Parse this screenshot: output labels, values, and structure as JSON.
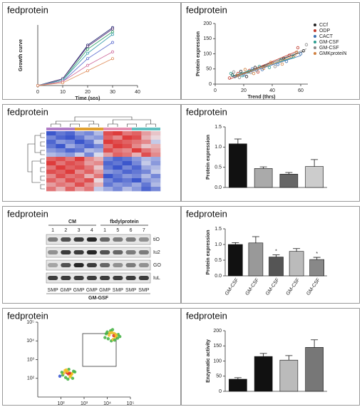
{
  "chart_data": [
    {
      "type": "line",
      "title": "fedprotein",
      "xlabel": "Time (sos)",
      "ylabel": "Growth curve",
      "x": [
        0,
        10,
        20,
        30
      ],
      "xlim": [
        0,
        40
      ],
      "xticks": [
        0,
        10,
        20,
        30,
        40
      ],
      "ylim": [
        0,
        45
      ],
      "series": [
        {
          "color": "#2b2f7a",
          "values": [
            0,
            5,
            30,
            43
          ]
        },
        {
          "color": "#5a3a7a",
          "values": [
            0,
            5,
            29,
            42
          ]
        },
        {
          "color": "#3aa870",
          "values": [
            0,
            4,
            27,
            40
          ]
        },
        {
          "color": "#40a0b0",
          "values": [
            0,
            4,
            24,
            38
          ]
        },
        {
          "color": "#6070d0",
          "values": [
            0,
            3,
            20,
            32
          ]
        },
        {
          "color": "#d070a0",
          "values": [
            0,
            3,
            15,
            25
          ]
        },
        {
          "color": "#e09060",
          "values": [
            0,
            2,
            11,
            20
          ]
        }
      ]
    },
    {
      "type": "scatter",
      "title": "fedprotein",
      "xlabel": "Trend (thrs)",
      "ylabel": "Protein expression",
      "xlim": [
        0,
        65
      ],
      "xticks": [
        0,
        20,
        40,
        60
      ],
      "ylim": [
        0,
        200
      ],
      "yticks": [
        0,
        50,
        100,
        150,
        200
      ],
      "series": [
        {
          "name": "CCf",
          "color": "#222222",
          "x": [
            12,
            18,
            22,
            28,
            35,
            48,
            62
          ],
          "values": [
            30,
            42,
            25,
            55,
            60,
            85,
            110
          ]
        },
        {
          "name": "ODP",
          "color": "#c0392b",
          "x": [
            10,
            16,
            24,
            30,
            40,
            52,
            58
          ],
          "values": [
            20,
            35,
            45,
            40,
            70,
            95,
            120
          ]
        },
        {
          "name": "CACT",
          "color": "#3a6fb0",
          "x": [
            14,
            20,
            26,
            33,
            44,
            50,
            60
          ],
          "values": [
            25,
            30,
            50,
            48,
            65,
            75,
            100
          ]
        },
        {
          "name": "GM-CSF",
          "color": "#2a9d8f",
          "x": [
            11,
            19,
            23,
            31,
            38,
            46,
            55
          ],
          "values": [
            35,
            28,
            40,
            58,
            55,
            80,
            90
          ]
        },
        {
          "name": "GM-CSF",
          "color": "#888888",
          "x": [
            13,
            17,
            25,
            29,
            36,
            42,
            64
          ],
          "values": [
            40,
            22,
            38,
            45,
            62,
            58,
            130
          ]
        },
        {
          "name": "GMKproteiN",
          "color": "#d08040",
          "x": [
            15,
            21,
            27,
            34,
            39,
            47,
            57
          ],
          "values": [
            28,
            48,
            35,
            52,
            72,
            66,
            105
          ]
        }
      ]
    },
    {
      "type": "heatmap",
      "title": "fedprotein",
      "zlim": [
        -1,
        1
      ],
      "values": [
        [
          -0.9,
          -0.7,
          -0.8,
          -0.5,
          -0.6,
          -0.3,
          0.8,
          0.9,
          0.6,
          0.7,
          0.4,
          0.2
        ],
        [
          -0.6,
          -0.8,
          -0.9,
          -0.7,
          -0.4,
          -0.5,
          0.7,
          0.5,
          0.9,
          0.8,
          0.3,
          0.1
        ],
        [
          -0.8,
          -0.5,
          -0.6,
          -0.9,
          -0.7,
          -0.2,
          0.9,
          0.8,
          0.7,
          0.6,
          0.5,
          -0.2
        ],
        [
          -0.7,
          -0.9,
          -0.4,
          -0.6,
          -0.8,
          -0.6,
          0.6,
          0.9,
          0.8,
          0.5,
          0.2,
          0.3
        ],
        [
          -0.5,
          -0.6,
          -0.8,
          -0.7,
          -0.3,
          -0.4,
          0.8,
          0.6,
          0.5,
          0.9,
          0.6,
          0.4
        ],
        [
          -0.3,
          -0.4,
          -0.5,
          -0.2,
          -0.6,
          -0.1,
          0.4,
          0.7,
          0.6,
          0.3,
          0.8,
          0.5
        ],
        [
          0.7,
          0.8,
          0.6,
          0.9,
          0.5,
          0.3,
          -0.6,
          -0.8,
          -0.7,
          -0.5,
          -0.3,
          -0.4
        ],
        [
          0.9,
          0.6,
          0.8,
          0.7,
          0.4,
          0.5,
          -0.8,
          -0.7,
          -0.9,
          -0.6,
          -0.2,
          -0.5
        ],
        [
          0.6,
          0.9,
          0.7,
          0.8,
          0.6,
          0.2,
          -0.7,
          -0.9,
          -0.6,
          -0.8,
          -0.4,
          -0.3
        ],
        [
          0.8,
          0.7,
          0.9,
          0.5,
          0.7,
          0.4,
          -0.5,
          -0.6,
          -0.8,
          -0.7,
          -0.6,
          -0.2
        ],
        [
          0.5,
          0.8,
          0.6,
          0.7,
          0.3,
          0.6,
          -0.9,
          -0.7,
          -0.5,
          -0.6,
          -0.3,
          -0.6
        ],
        [
          0.7,
          0.5,
          0.8,
          0.6,
          0.8,
          0.1,
          -0.6,
          -0.8,
          -0.7,
          -0.9,
          -0.5,
          -0.4
        ],
        [
          0.4,
          0.6,
          0.5,
          0.8,
          0.5,
          0.3,
          -0.7,
          -0.5,
          -0.6,
          -0.4,
          -0.7,
          -0.3
        ],
        [
          0.6,
          0.3,
          0.7,
          0.4,
          0.6,
          -0.2,
          -0.4,
          -0.6,
          -0.3,
          -0.5,
          -0.8,
          -0.6
        ]
      ]
    },
    {
      "type": "bar",
      "title": "fedprotein",
      "ylabel": "Protein expression",
      "categories": [
        null,
        null,
        null,
        null
      ],
      "values": [
        1.08,
        0.47,
        0.33,
        0.52
      ],
      "errors": [
        0.12,
        0.04,
        0.04,
        0.17
      ],
      "colors": [
        "#111111",
        "#aaaaaa",
        "#666666",
        "#cccccc"
      ],
      "ylim": [
        0,
        1.5
      ],
      "yticks": [
        {
          "value": 0,
          "label": "0.0"
        },
        0.5,
        {
          "value": 1,
          "label": "1.0"
        },
        1.5
      ]
    },
    {
      "type": "blot",
      "title": "fedprotein",
      "groups": [
        "CM",
        "fbdylprotein"
      ],
      "lanes": [
        1,
        2,
        3,
        4,
        1,
        5,
        6,
        7
      ],
      "rows": [
        "tiO",
        "Iu2",
        "GO",
        "IuL"
      ],
      "bands": [
        [
          0.5,
          0.7,
          0.8,
          0.9,
          0.6,
          0.5,
          0.5,
          0.4
        ],
        [
          0.4,
          0.8,
          0.8,
          0.9,
          0.7,
          0.6,
          0.5,
          0.5
        ],
        [
          0.3,
          0.7,
          0.9,
          0.8,
          0.6,
          0.4,
          0.5,
          0.4
        ],
        [
          0.8,
          0.8,
          0.8,
          0.8,
          0.8,
          0.8,
          0.8,
          0.8
        ]
      ],
      "lane_labels": [
        "SMP",
        "GMP",
        "GMP",
        "GMP",
        "GMP",
        "SMP",
        "SMP",
        "SMP"
      ],
      "footer": "GM-GSF"
    },
    {
      "type": "bar",
      "title": "fedprotein",
      "ylabel": "Protein expression",
      "categories": [
        "GM-CSF",
        "GM-CSF",
        "GM-CSF",
        "GM-CSF",
        "GM-CSF"
      ],
      "values": [
        1.0,
        1.05,
        0.6,
        0.78,
        0.52
      ],
      "errors": [
        0.06,
        0.2,
        0.07,
        0.09,
        0.07
      ],
      "significance": [
        null,
        null,
        "*",
        null,
        "*"
      ],
      "colors": [
        "#111111",
        "#999999",
        "#555555",
        "#bbbbbb",
        "#888888"
      ],
      "ylim": [
        0,
        1.5
      ],
      "yticks": [
        {
          "value": 0,
          "label": "0.0"
        },
        0.5,
        {
          "value": 1,
          "label": "1.0"
        },
        1.5
      ]
    },
    {
      "type": "flow",
      "title": "fedprotein",
      "xscale": "log",
      "yscale": "log",
      "xlim": [
        10,
        100000
      ],
      "ylim": [
        10,
        100000
      ],
      "xticks": [
        {
          "value": 100,
          "label": "10²"
        },
        {
          "value": 1000,
          "label": "10³"
        },
        {
          "value": 10000,
          "label": "10⁴"
        },
        {
          "value": 100000,
          "label": "10⁵"
        }
      ],
      "yticks": [
        {
          "value": 100,
          "label": "10²"
        },
        {
          "value": 1000,
          "label": "10³"
        },
        {
          "value": 10000,
          "label": "10⁴"
        },
        {
          "value": 100000,
          "label": "10⁵"
        }
      ],
      "series": [
        {
          "x": [
            120,
            180,
            250,
            150,
            300,
            200,
            90,
            400,
            220,
            160,
            280,
            350,
            130,
            210,
            190,
            260,
            110,
            320,
            170,
            240
          ],
          "values": [
            150,
            200,
            120,
            260,
            180,
            90,
            130,
            220,
            300,
            110,
            160,
            240,
            190,
            170,
            230,
            140,
            210,
            100,
            280,
            190
          ]
        },
        {
          "x": [
            8000,
            12000,
            15000,
            20000,
            10000,
            25000,
            18000,
            30000,
            14000,
            22000,
            9000,
            16000,
            28000,
            11000,
            19000,
            13000,
            24000,
            17000,
            21000,
            35000
          ],
          "values": [
            15000,
            20000,
            10000,
            25000,
            30000,
            18000,
            12000,
            22000,
            35000,
            16000,
            24000,
            28000,
            14000,
            13000,
            19000,
            27000,
            21000,
            40000,
            11000,
            17000
          ]
        }
      ]
    },
    {
      "type": "bar",
      "title": "fedprotein",
      "ylabel": "Enzymatic activity",
      "categories": [
        null,
        null,
        null,
        null
      ],
      "values": [
        40,
        115,
        103,
        145
      ],
      "errors": [
        5,
        10,
        15,
        25
      ],
      "colors": [
        "#111111",
        "#111111",
        "#bbbbbb",
        "#777777"
      ],
      "ylim": [
        0,
        200
      ],
      "yticks": [
        0,
        50,
        100,
        150,
        200
      ]
    }
  ]
}
